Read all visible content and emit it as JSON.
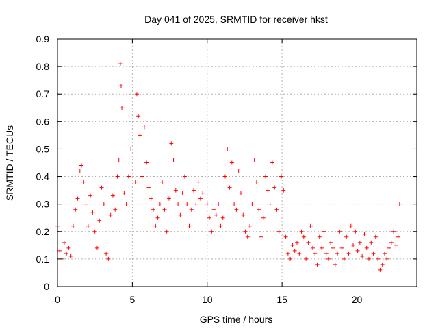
{
  "chart_data": {
    "type": "scatter",
    "title": "Day 041 of 2025, SRMTID for receiver hkst",
    "xlabel": "GPS time / hours",
    "ylabel": "SRMTID / TECUs",
    "xlim": [
      0,
      24
    ],
    "ylim": [
      0,
      0.9
    ],
    "xticks": [
      0,
      5,
      10,
      15,
      20
    ],
    "xtick_labels": [
      "0",
      "5",
      "10",
      "15",
      "20"
    ],
    "yticks": [
      0,
      0.1,
      0.2,
      0.3,
      0.4,
      0.5,
      0.6,
      0.7,
      0.8,
      0.9
    ],
    "ytick_labels": [
      "0",
      "0.1",
      "0.2",
      "0.3",
      "0.4",
      "0.5",
      "0.6",
      "0.7",
      "0.8",
      "0.9"
    ],
    "grid": true,
    "marker": "plus",
    "color": "#ff0000",
    "series": [
      {
        "name": "SRMTID",
        "x": [
          0.0,
          0.15,
          0.3,
          0.45,
          0.6,
          0.75,
          0.9,
          1.05,
          1.2,
          1.35,
          1.5,
          1.6,
          1.75,
          1.9,
          2.05,
          2.2,
          2.35,
          2.5,
          2.65,
          2.8,
          2.95,
          3.1,
          3.25,
          3.4,
          3.55,
          3.7,
          3.85,
          4.0,
          4.1,
          4.2,
          4.25,
          4.3,
          4.45,
          4.6,
          4.75,
          4.9,
          5.05,
          5.2,
          5.3,
          5.4,
          5.5,
          5.65,
          5.8,
          5.95,
          6.1,
          6.25,
          6.4,
          6.55,
          6.7,
          6.85,
          7.0,
          7.15,
          7.3,
          7.45,
          7.6,
          7.75,
          7.9,
          8.05,
          8.2,
          8.35,
          8.5,
          8.65,
          8.8,
          8.95,
          9.1,
          9.25,
          9.4,
          9.55,
          9.7,
          9.85,
          10.0,
          10.15,
          10.3,
          10.45,
          10.6,
          10.75,
          10.9,
          11.05,
          11.2,
          11.35,
          11.5,
          11.65,
          11.8,
          11.95,
          12.1,
          12.25,
          12.4,
          12.55,
          12.7,
          12.85,
          13.0,
          13.15,
          13.3,
          13.45,
          13.6,
          13.75,
          13.9,
          14.05,
          14.2,
          14.35,
          14.5,
          14.65,
          14.8,
          14.95,
          15.1,
          15.25,
          15.4,
          15.55,
          15.7,
          15.85,
          16.0,
          16.15,
          16.3,
          16.45,
          16.6,
          16.75,
          16.9,
          17.05,
          17.2,
          17.35,
          17.5,
          17.65,
          17.8,
          17.95,
          18.1,
          18.25,
          18.4,
          18.55,
          18.7,
          18.85,
          19.0,
          19.15,
          19.3,
          19.45,
          19.6,
          19.75,
          19.9,
          20.05,
          20.2,
          20.35,
          20.5,
          20.65,
          20.8,
          20.95,
          21.1,
          21.25,
          21.4,
          21.55,
          21.7,
          21.85,
          22.0,
          22.15,
          22.3,
          22.45,
          22.6,
          22.75,
          22.85
        ],
        "y": [
          0.22,
          0.13,
          0.1,
          0.16,
          0.12,
          0.14,
          0.11,
          0.22,
          0.28,
          0.32,
          0.42,
          0.44,
          0.38,
          0.3,
          0.22,
          0.33,
          0.27,
          0.2,
          0.14,
          0.24,
          0.36,
          0.3,
          0.12,
          0.1,
          0.26,
          0.33,
          0.28,
          0.4,
          0.46,
          0.81,
          0.73,
          0.65,
          0.34,
          0.3,
          0.4,
          0.5,
          0.42,
          0.38,
          0.7,
          0.62,
          0.55,
          0.4,
          0.58,
          0.45,
          0.36,
          0.32,
          0.28,
          0.22,
          0.25,
          0.3,
          0.38,
          0.28,
          0.2,
          0.32,
          0.52,
          0.46,
          0.35,
          0.3,
          0.26,
          0.34,
          0.4,
          0.3,
          0.22,
          0.28,
          0.35,
          0.3,
          0.38,
          0.32,
          0.34,
          0.42,
          0.3,
          0.25,
          0.2,
          0.28,
          0.26,
          0.3,
          0.22,
          0.25,
          0.4,
          0.5,
          0.36,
          0.45,
          0.3,
          0.28,
          0.42,
          0.34,
          0.26,
          0.2,
          0.18,
          0.22,
          0.3,
          0.46,
          0.38,
          0.28,
          0.18,
          0.25,
          0.4,
          0.35,
          0.3,
          0.45,
          0.36,
          0.28,
          0.2,
          0.4,
          0.35,
          0.18,
          0.12,
          0.1,
          0.15,
          0.13,
          0.16,
          0.12,
          0.2,
          0.18,
          0.1,
          0.16,
          0.22,
          0.14,
          0.12,
          0.08,
          0.18,
          0.14,
          0.2,
          0.12,
          0.1,
          0.16,
          0.14,
          0.08,
          0.12,
          0.2,
          0.14,
          0.1,
          0.18,
          0.12,
          0.22,
          0.15,
          0.2,
          0.13,
          0.16,
          0.11,
          0.19,
          0.14,
          0.1,
          0.16,
          0.12,
          0.18,
          0.1,
          0.06,
          0.08,
          0.12,
          0.1,
          0.14,
          0.16,
          0.2,
          0.15,
          0.18,
          0.3
        ]
      }
    ]
  }
}
